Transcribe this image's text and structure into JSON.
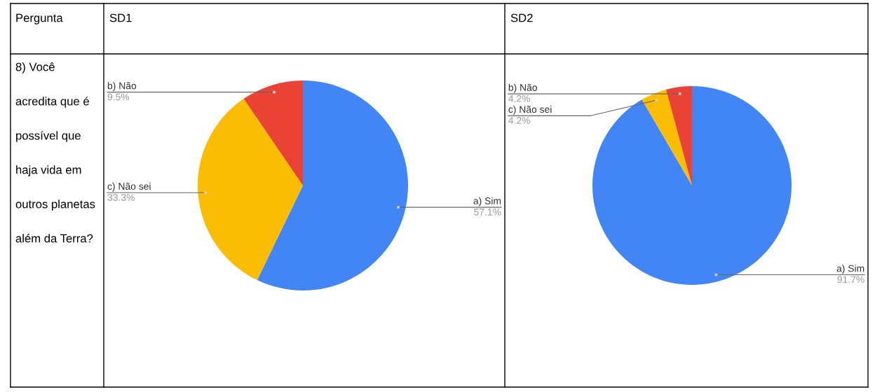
{
  "chart_data": [
    {
      "type": "pie",
      "title": "SD1",
      "annotations": [
        "Pergunta",
        "8) Você acredita que é possível que haja vida em outros planetas além da Terra?"
      ],
      "categories": [
        "a) Sim",
        "c) Não sei",
        "b) Não"
      ],
      "values": [
        57.1,
        33.3,
        9.5
      ],
      "value_labels": [
        "57.1%",
        "33.3%",
        "9.5%"
      ],
      "colors": [
        "#4285f4",
        "#fbbc04",
        "#ea4335"
      ],
      "legend": false
    },
    {
      "type": "pie",
      "title": "SD2",
      "categories": [
        "a) Sim",
        "c) Não sei",
        "b) Não"
      ],
      "values": [
        91.7,
        4.2,
        4.2
      ],
      "value_labels": [
        "91.7%",
        "4.2%",
        "4.2%"
      ],
      "colors": [
        "#4285f4",
        "#fbbc04",
        "#ea4335"
      ],
      "legend": false
    }
  ]
}
